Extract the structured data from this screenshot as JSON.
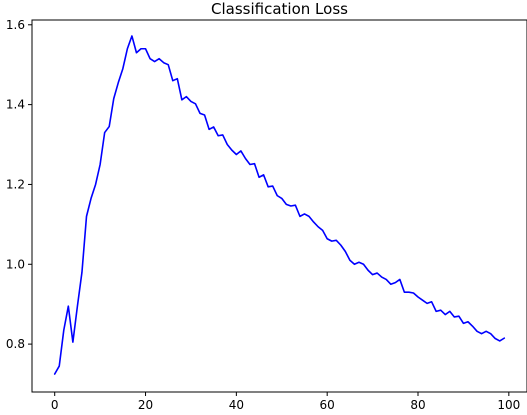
{
  "chart_data": {
    "type": "line",
    "title": "Classification Loss",
    "xlabel": "",
    "ylabel": "",
    "xlim": [
      -5,
      104
    ],
    "ylim": [
      0.68,
      1.612
    ],
    "x_ticks": [
      0,
      20,
      40,
      60,
      80,
      100
    ],
    "y_ticks": [
      0.8,
      1.0,
      1.2,
      1.4,
      1.6
    ],
    "grid": false,
    "legend": "none",
    "series": [
      {
        "color": "#0000ff",
        "x": [
          0,
          1,
          2,
          3,
          4,
          5,
          6,
          7,
          8,
          9,
          10,
          11,
          12,
          13,
          14,
          15,
          16,
          17,
          18,
          19,
          20,
          21,
          22,
          23,
          24,
          25,
          26,
          27,
          28,
          29,
          30,
          31,
          32,
          33,
          34,
          35,
          36,
          37,
          38,
          39,
          40,
          41,
          42,
          43,
          44,
          45,
          46,
          47,
          48,
          49,
          50,
          51,
          52,
          53,
          54,
          55,
          56,
          57,
          58,
          59,
          60,
          61,
          62,
          63,
          64,
          65,
          66,
          67,
          68,
          69,
          70,
          71,
          72,
          73,
          74,
          75,
          76,
          77,
          78,
          79,
          80,
          81,
          82,
          83,
          84,
          85,
          86,
          87,
          88,
          89,
          90,
          91,
          92,
          93,
          94,
          95,
          96,
          97,
          98,
          99
        ],
        "values": [
          0.725,
          0.745,
          0.835,
          0.895,
          0.805,
          0.895,
          0.98,
          1.12,
          1.165,
          1.2,
          1.25,
          1.33,
          1.345,
          1.415,
          1.455,
          1.49,
          1.54,
          1.572,
          1.53,
          1.54,
          1.54,
          1.515,
          1.508,
          1.515,
          1.505,
          1.5,
          1.46,
          1.465,
          1.412,
          1.42,
          1.408,
          1.402,
          1.378,
          1.374,
          1.338,
          1.344,
          1.322,
          1.324,
          1.3,
          1.286,
          1.275,
          1.284,
          1.265,
          1.25,
          1.252,
          1.218,
          1.224,
          1.194,
          1.196,
          1.172,
          1.165,
          1.15,
          1.146,
          1.148,
          1.12,
          1.126,
          1.12,
          1.106,
          1.094,
          1.085,
          1.064,
          1.058,
          1.06,
          1.048,
          1.032,
          1.01,
          1.0,
          1.005,
          1.0,
          0.985,
          0.974,
          0.978,
          0.968,
          0.962,
          0.95,
          0.954,
          0.962,
          0.93,
          0.93,
          0.928,
          0.918,
          0.91,
          0.902,
          0.906,
          0.882,
          0.885,
          0.874,
          0.882,
          0.868,
          0.87,
          0.852,
          0.856,
          0.845,
          0.832,
          0.826,
          0.832,
          0.826,
          0.814,
          0.808,
          0.815
        ]
      }
    ]
  }
}
